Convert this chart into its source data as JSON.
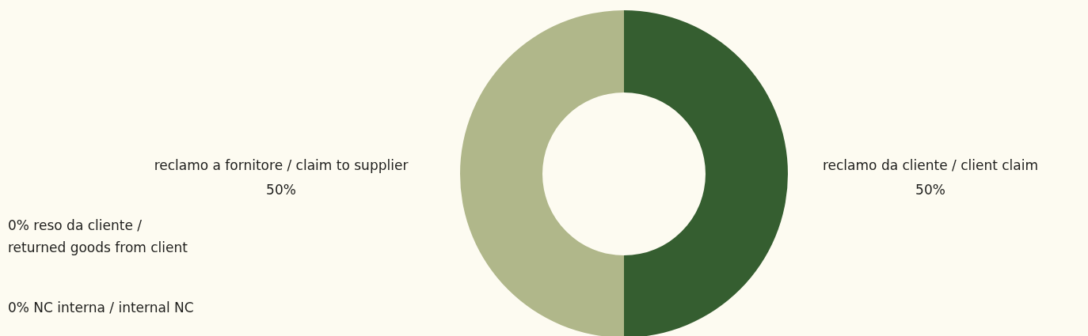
{
  "chart_data": {
    "type": "donut",
    "categories": [
      "reclamo da cliente / client claim",
      "reclamo a fornitore / claim to supplier",
      "reso da cliente / returned goods from client",
      "NC interna / internal NC"
    ],
    "values": [
      50,
      50,
      0,
      0
    ],
    "value_labels": [
      "50%",
      "50%",
      "0%",
      "0%"
    ],
    "colors": [
      "#355e30",
      "#b0b78a",
      "#7f9a5e",
      "#d9dcc0"
    ],
    "legend": false
  }
}
